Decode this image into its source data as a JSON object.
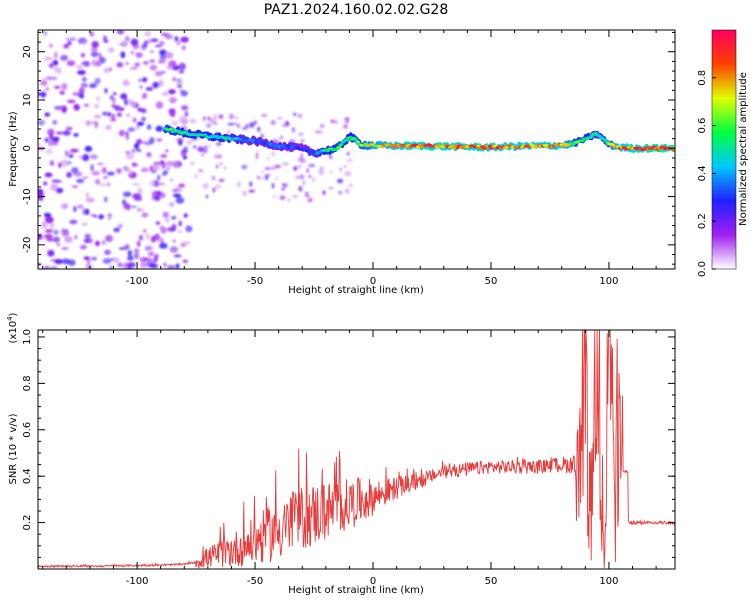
{
  "title": "PAZ1.2024.160.02.02.G28",
  "chart_data": [
    {
      "type": "heatmap",
      "xlabel": "Height of straight line (km)",
      "ylabel": "Frequency (Hz)",
      "xlim": [
        -142,
        128
      ],
      "ylim": [
        -25,
        24.5
      ],
      "xticks": [
        -100,
        -50,
        0,
        50,
        100
      ],
      "yticks": [
        -20,
        -10,
        0,
        10,
        20
      ],
      "colorbar": {
        "label": "Normalized spectral amplitude",
        "range": [
          0,
          1
        ],
        "ticks": [
          0.0,
          0.2,
          0.4,
          0.6,
          0.8
        ],
        "colormap": [
          "#ffffff",
          "#a020f0",
          "#2020ff",
          "#00c8ff",
          "#00ff40",
          "#e0ff00",
          "#ff4000",
          "#ff0060"
        ]
      },
      "ridge": {
        "x": [
          -88,
          -80,
          -70,
          -60,
          -50,
          -40,
          -30,
          -25,
          -20,
          -15,
          -10,
          -5,
          0,
          10,
          20,
          30,
          40,
          50,
          60,
          70,
          80,
          85,
          90,
          95,
          100,
          105,
          110,
          120,
          128
        ],
        "y": [
          4,
          3.2,
          2.5,
          2.0,
          1.5,
          0.5,
          0.0,
          -1.0,
          -0.5,
          0.0,
          2.5,
          0.8,
          0.6,
          0.5,
          0.5,
          0.4,
          0.3,
          0.2,
          0.4,
          0.5,
          0.6,
          1.0,
          2.0,
          3.0,
          0.8,
          0.2,
          0.0,
          0.0,
          0.0
        ],
        "amplitude": [
          0.55,
          0.5,
          0.5,
          0.45,
          0.35,
          0.35,
          0.3,
          0.35,
          0.5,
          0.55,
          0.5,
          0.6,
          0.7,
          0.8,
          0.85,
          0.85,
          0.85,
          0.85,
          0.8,
          0.8,
          0.8,
          0.6,
          0.5,
          0.45,
          0.6,
          0.8,
          0.85,
          0.9,
          0.9
        ]
      }
    },
    {
      "type": "line",
      "xlabel": "Height of straight line (km)",
      "ylabel": "SNR (10 * v/v)",
      "y_multiplier": "(x10^4)",
      "xlim": [
        -142,
        128
      ],
      "ylim": [
        0,
        1.03
      ],
      "xticks": [
        -100,
        -50,
        0,
        50,
        100
      ],
      "yticks": [
        0.2,
        0.4,
        0.6,
        0.8,
        1.0
      ],
      "line_color": "#e83a3a",
      "x": [
        -142,
        -120,
        -100,
        -90,
        -80,
        -75,
        -70,
        -60,
        -50,
        -40,
        -30,
        -20,
        -10,
        0,
        10,
        20,
        25,
        30,
        40,
        50,
        60,
        70,
        80,
        85,
        88,
        90,
        92,
        95,
        98,
        100,
        103,
        105,
        108,
        110,
        115,
        120,
        128
      ],
      "y": [
        0.012,
        0.012,
        0.015,
        0.017,
        0.02,
        0.03,
        0.05,
        0.08,
        0.12,
        0.17,
        0.22,
        0.25,
        0.28,
        0.31,
        0.35,
        0.38,
        0.4,
        0.42,
        0.43,
        0.44,
        0.44,
        0.44,
        0.45,
        0.45,
        0.35,
        0.75,
        0.2,
        0.55,
        0.1,
        0.9,
        0.3,
        0.42,
        0.42,
        0.2,
        0.2,
        0.2,
        0.2
      ],
      "envelope": {
        "x": [
          -75,
          -65,
          -55,
          -45,
          -35,
          -25,
          -15,
          -5,
          5,
          15,
          25,
          35,
          45,
          55,
          65,
          75,
          85,
          90,
          95,
          100,
          105
        ],
        "amp": [
          0.03,
          0.06,
          0.09,
          0.12,
          0.14,
          0.14,
          0.12,
          0.1,
          0.06,
          0.04,
          0.03,
          0.03,
          0.03,
          0.03,
          0.03,
          0.03,
          0.04,
          0.25,
          0.3,
          0.35,
          0.12
        ]
      }
    }
  ]
}
